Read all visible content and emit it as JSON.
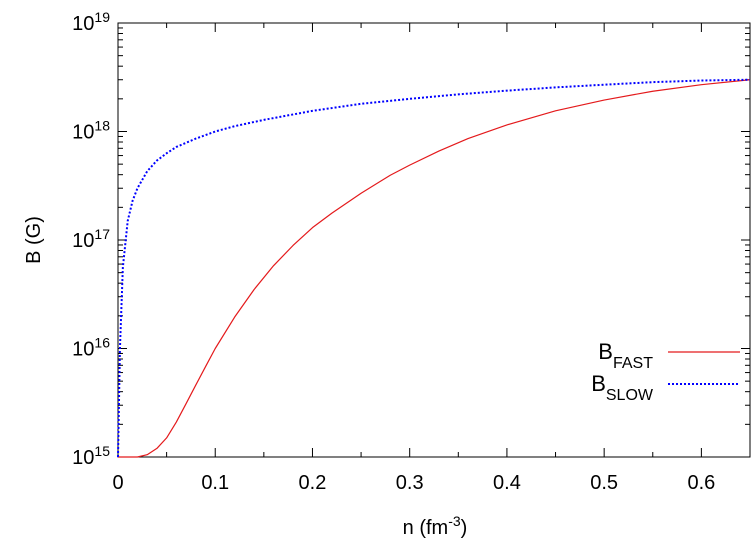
{
  "chart_data": {
    "type": "line",
    "xlabel": {
      "base": "n (fm",
      "sup": "-3",
      "tail": ")"
    },
    "ylabel": "B (G)",
    "xlim": [
      0,
      0.65
    ],
    "ylim": [
      1000000000000000.0,
      1e+19
    ],
    "y_scale": "log",
    "grid": false,
    "legend_position": "right",
    "xticks": [
      {
        "value": 0,
        "label": "0"
      },
      {
        "value": 0.1,
        "label": "0.1"
      },
      {
        "value": 0.2,
        "label": "0.2"
      },
      {
        "value": 0.3,
        "label": "0.3"
      },
      {
        "value": 0.4,
        "label": "0.4"
      },
      {
        "value": 0.5,
        "label": "0.5"
      },
      {
        "value": 0.6,
        "label": "0.6"
      }
    ],
    "yticks": [
      {
        "value": 1000000000000000.0,
        "base": "10",
        "exp": "15"
      },
      {
        "value": 1e+16,
        "base": "10",
        "exp": "16"
      },
      {
        "value": 1e+17,
        "base": "10",
        "exp": "17"
      },
      {
        "value": 1e+18,
        "base": "10",
        "exp": "18"
      },
      {
        "value": 1e+19,
        "base": "10",
        "exp": "19"
      }
    ],
    "series": [
      {
        "name": "B",
        "name_sub": "FAST",
        "color": "#e41a1c",
        "style": "solid",
        "x": [
          0,
          0.02,
          0.03,
          0.04,
          0.05,
          0.06,
          0.07,
          0.08,
          0.09,
          0.1,
          0.12,
          0.14,
          0.16,
          0.18,
          0.2,
          0.22,
          0.25,
          0.28,
          0.3,
          0.33,
          0.36,
          0.4,
          0.45,
          0.5,
          0.55,
          0.6,
          0.65
        ],
        "y": [
          1000000000000000.0,
          1000000000000000.0,
          1050000000000000.0,
          1200000000000000.0,
          1500000000000000.0,
          2100000000000000.0,
          3100000000000000.0,
          4600000000000000.0,
          6800000000000000.0,
          1e+16,
          1.95e+16,
          3.5e+16,
          5.8e+16,
          8.9e+16,
          1.3e+17,
          1.77e+17,
          2.7e+17,
          3.95e+17,
          4.9e+17,
          6.6e+17,
          8.6e+17,
          1.15e+18,
          1.55e+18,
          1.95e+18,
          2.35e+18,
          2.7e+18,
          3e+18
        ]
      },
      {
        "name": "B",
        "name_sub": "SLOW",
        "color": "#0000ff",
        "style": "dotted",
        "x": [
          0,
          0.002,
          0.005,
          0.01,
          0.015,
          0.02,
          0.03,
          0.04,
          0.05,
          0.06,
          0.08,
          0.1,
          0.12,
          0.15,
          0.2,
          0.25,
          0.3,
          0.35,
          0.4,
          0.45,
          0.5,
          0.55,
          0.6,
          0.65
        ],
        "y": [
          1000000000000000.0,
          1e+16,
          5.6e+16,
          1.5e+17,
          2.3e+17,
          3e+17,
          4.3e+17,
          5.4e+17,
          6.3e+17,
          7.2e+17,
          8.6e+17,
          1e+18,
          1.12e+18,
          1.28e+18,
          1.55e+18,
          1.8e+18,
          2e+18,
          2.2e+18,
          2.38e+18,
          2.55e+18,
          2.7e+18,
          2.85e+18,
          2.95e+18,
          3e+18
        ]
      }
    ]
  }
}
